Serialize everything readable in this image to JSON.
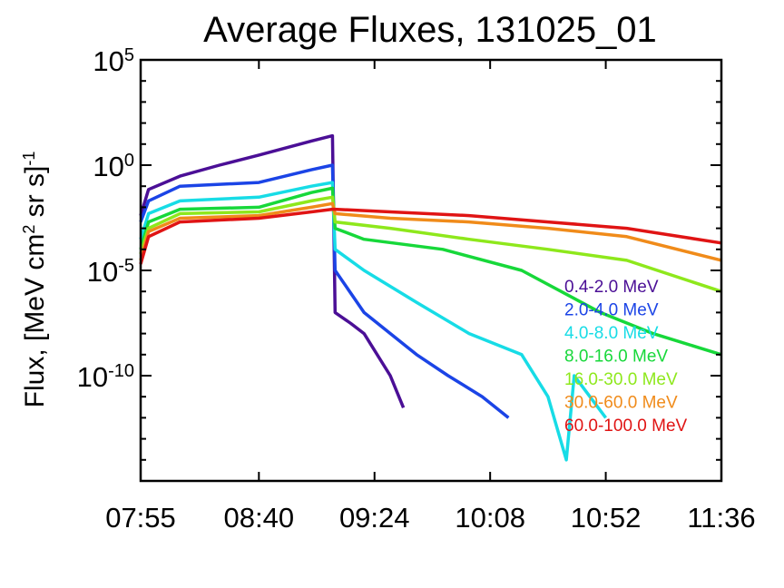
{
  "chart_data": {
    "type": "line",
    "title": "Average Fluxes, 131025_01",
    "ylabel_main": "Flux, [MeV cm",
    "ylabel_sup1": "2",
    "ylabel_mid": " sr s]",
    "ylabel_sup2": "-1",
    "y_scale": "log",
    "ylim": [
      "1e-15",
      "1e5"
    ],
    "xlim": [
      "07:55",
      "11:36"
    ],
    "x_ticks": [
      "07:55",
      "08:40",
      "09:24",
      "10:08",
      "10:52",
      "11:36"
    ],
    "y_ticks": [
      {
        "base": "10",
        "exp": "5",
        "value": 5
      },
      {
        "base": "10",
        "exp": "0",
        "value": 0
      },
      {
        "base": "10",
        "exp": "-5",
        "value": -5
      },
      {
        "base": "10",
        "exp": "-10",
        "value": -10
      }
    ],
    "legend_position": "right",
    "series": [
      {
        "name": "0.4-2.0 MeV",
        "color": "#4b0f96",
        "points": [
          [
            "07:55",
            "0.004"
          ],
          [
            "07:58",
            "0.07"
          ],
          [
            "08:10",
            "0.3"
          ],
          [
            "08:25",
            "1.0"
          ],
          [
            "08:40",
            "3.0"
          ],
          [
            "09:00",
            "14"
          ],
          [
            "09:08",
            "25"
          ],
          [
            "09:09",
            "1e-7"
          ],
          [
            "09:15",
            "3e-8"
          ],
          [
            "09:20",
            "1e-8"
          ],
          [
            "09:30",
            "1e-10"
          ],
          [
            "09:35",
            "3e-12"
          ]
        ]
      },
      {
        "name": "2.0-4.0 MeV",
        "color": "#1b44e6",
        "points": [
          [
            "07:55",
            "0.002"
          ],
          [
            "07:58",
            "0.02"
          ],
          [
            "08:10",
            "0.1"
          ],
          [
            "08:40",
            "0.15"
          ],
          [
            "09:00",
            "0.6"
          ],
          [
            "09:08",
            "1.0"
          ],
          [
            "09:09",
            "1e-5"
          ],
          [
            "09:20",
            "1e-7"
          ],
          [
            "09:40",
            "1e-9"
          ],
          [
            "09:52",
            "1e-10"
          ],
          [
            "10:05",
            "1e-11"
          ],
          [
            "10:15",
            "1e-12"
          ]
        ]
      },
      {
        "name": "4.0-8.0 MeV",
        "color": "#17dce6",
        "points": [
          [
            "07:55",
            "3e-4"
          ],
          [
            "07:58",
            "0.005"
          ],
          [
            "08:10",
            "0.02"
          ],
          [
            "08:40",
            "0.03"
          ],
          [
            "09:00",
            "0.1"
          ],
          [
            "09:08",
            "0.15"
          ],
          [
            "09:09",
            "1e-4"
          ],
          [
            "09:20",
            "1e-5"
          ],
          [
            "09:40",
            "3e-7"
          ],
          [
            "10:00",
            "1e-8"
          ],
          [
            "10:20",
            "1e-9"
          ],
          [
            "10:30",
            "1e-11"
          ],
          [
            "10:37",
            "1e-14"
          ],
          [
            "10:40",
            "1e-10"
          ],
          [
            "10:52",
            "1e-12"
          ]
        ]
      },
      {
        "name": "8.0-16.0 MeV",
        "color": "#17d83a",
        "points": [
          [
            "07:55",
            "1e-4"
          ],
          [
            "07:58",
            "0.002"
          ],
          [
            "08:10",
            "0.008"
          ],
          [
            "08:40",
            "0.01"
          ],
          [
            "09:00",
            "0.05"
          ],
          [
            "09:08",
            "0.08"
          ],
          [
            "09:09",
            "1e-3"
          ],
          [
            "09:20",
            "3e-4"
          ],
          [
            "09:50",
            "1e-4"
          ],
          [
            "10:20",
            "1e-5"
          ],
          [
            "10:50",
            "1e-7"
          ],
          [
            "11:10",
            "1e-8"
          ],
          [
            "11:36",
            "1e-9"
          ]
        ]
      },
      {
        "name": "16.0-30.0 MeV",
        "color": "#8ee81c",
        "points": [
          [
            "07:55",
            "6e-5"
          ],
          [
            "07:58",
            "0.001"
          ],
          [
            "08:10",
            "0.005"
          ],
          [
            "08:40",
            "0.006"
          ],
          [
            "09:00",
            "0.02"
          ],
          [
            "09:08",
            "0.03"
          ],
          [
            "09:09",
            "0.002"
          ],
          [
            "09:30",
            "0.001"
          ],
          [
            "10:00",
            "3e-4"
          ],
          [
            "10:30",
            "1e-4"
          ],
          [
            "11:00",
            "3e-5"
          ],
          [
            "11:36",
            "1e-6"
          ]
        ]
      },
      {
        "name": "30.0-60.0 MeV",
        "color": "#f08b1a",
        "points": [
          [
            "07:55",
            "3e-5"
          ],
          [
            "07:58",
            "0.0007"
          ],
          [
            "08:10",
            "0.003"
          ],
          [
            "08:40",
            "0.004"
          ],
          [
            "09:00",
            "0.01"
          ],
          [
            "09:08",
            "0.015"
          ],
          [
            "09:09",
            "0.005"
          ],
          [
            "09:30",
            "0.003"
          ],
          [
            "10:00",
            "0.002"
          ],
          [
            "10:30",
            "0.001"
          ],
          [
            "11:00",
            "4e-4"
          ],
          [
            "11:36",
            "3e-5"
          ]
        ]
      },
      {
        "name": "60.0-100.0 MeV",
        "color": "#e01414",
        "points": [
          [
            "07:55",
            "2e-5"
          ],
          [
            "07:58",
            "0.0004"
          ],
          [
            "08:10",
            "0.002"
          ],
          [
            "08:40",
            "0.003"
          ],
          [
            "09:00",
            "0.006"
          ],
          [
            "09:08",
            "0.008"
          ],
          [
            "09:09",
            "0.008"
          ],
          [
            "09:30",
            "0.006"
          ],
          [
            "10:00",
            "0.004"
          ],
          [
            "10:30",
            "0.002"
          ],
          [
            "11:00",
            "0.001"
          ],
          [
            "11:36",
            "2e-4"
          ]
        ]
      }
    ]
  }
}
